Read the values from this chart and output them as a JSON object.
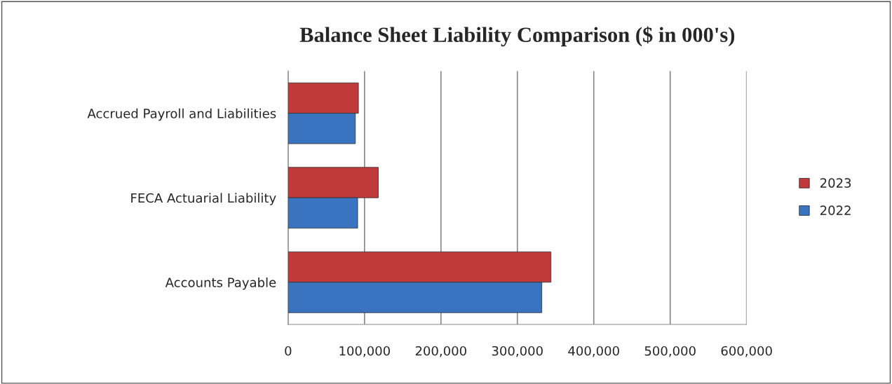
{
  "chart_data": {
    "type": "bar",
    "orientation": "horizontal",
    "title": "Balance Sheet Liability Comparison ($ in 000's)",
    "categories": [
      "Accrued Payroll and Liabilities",
      "FECA Actuarial Liability",
      "Accounts Payable"
    ],
    "series": [
      {
        "name": "2023",
        "color": "#c0393b",
        "values": [
          92000,
          118000,
          344000
        ]
      },
      {
        "name": "2022",
        "color": "#3a73c0",
        "values": [
          88000,
          91000,
          332000
        ]
      }
    ],
    "xlim": [
      0,
      600000
    ],
    "xticks": [
      {
        "value": 0,
        "label": "0"
      },
      {
        "value": 100000,
        "label": "100,000"
      },
      {
        "value": 200000,
        "label": "200,000"
      },
      {
        "value": 300000,
        "label": "300,000"
      },
      {
        "value": 400000,
        "label": "400,000"
      },
      {
        "value": 500000,
        "label": "500,000"
      },
      {
        "value": 600000,
        "label": "600,000"
      }
    ],
    "grid": "x",
    "legend": "right"
  }
}
